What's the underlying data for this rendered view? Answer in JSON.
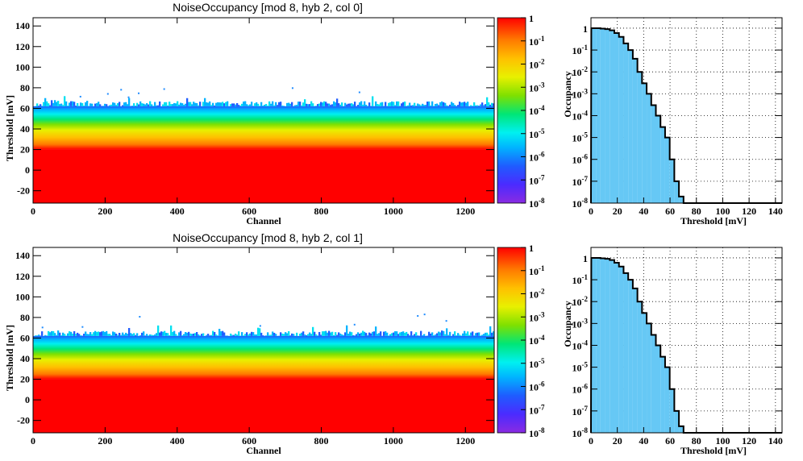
{
  "chart_data": [
    {
      "type": "heatmap",
      "title": "NoiseOccupancy [mod 8, hyb 2, col 0]",
      "xlabel": "Channel",
      "ylabel": "Threshold [mV]",
      "xlim": [
        0,
        1280
      ],
      "ylim": [
        -32,
        148
      ],
      "xticks": [
        "0",
        "200",
        "400",
        "600",
        "800",
        "1000",
        "1200"
      ],
      "yticks": [
        "-20",
        "0",
        "20",
        "40",
        "60",
        "80",
        "100",
        "120",
        "140"
      ],
      "z_scale": "log",
      "zlim": [
        1e-08,
        1
      ],
      "colorbar_labels": [
        {
          "base": "1",
          "exp": ""
        },
        {
          "base": "10",
          "exp": "-1"
        },
        {
          "base": "10",
          "exp": "-2"
        },
        {
          "base": "10",
          "exp": "-3"
        },
        {
          "base": "10",
          "exp": "-4"
        },
        {
          "base": "10",
          "exp": "-5"
        },
        {
          "base": "10",
          "exp": "-6"
        },
        {
          "base": "10",
          "exp": "-7"
        },
        {
          "base": "10",
          "exp": "-8"
        }
      ],
      "edge_threshold_mV": 68,
      "saturation_below_mV": 20
    },
    {
      "type": "bar",
      "title": "",
      "xlabel": "Threshold [mV]",
      "ylabel": "Occupancy",
      "xlim": [
        0,
        145
      ],
      "y_scale": "log",
      "ylim": [
        1e-08,
        3
      ],
      "xticks": [
        "0",
        "20",
        "40",
        "60",
        "80",
        "100",
        "120",
        "140"
      ],
      "yticks": [
        {
          "base": "1",
          "exp": ""
        },
        {
          "base": "10",
          "exp": "-1"
        },
        {
          "base": "10",
          "exp": "-2"
        },
        {
          "base": "10",
          "exp": "-3"
        },
        {
          "base": "10",
          "exp": "-4"
        },
        {
          "base": "10",
          "exp": "-5"
        },
        {
          "base": "10",
          "exp": "-6"
        },
        {
          "base": "10",
          "exp": "-7"
        },
        {
          "base": "10",
          "exp": "-8"
        }
      ],
      "bin_width_mV": 3.5,
      "x": [
        2,
        5.5,
        9,
        12.5,
        16,
        19.5,
        23,
        26.5,
        30,
        33.5,
        37,
        40.5,
        44,
        47.5,
        51,
        54.5,
        58,
        61.5,
        65,
        68.5,
        72
      ],
      "values": [
        1,
        1,
        0.95,
        0.9,
        0.8,
        0.6,
        0.4,
        0.2,
        0.1,
        0.04,
        0.01,
        0.003,
        0.001,
        0.0003,
        0.0001,
        3e-05,
        1e-05,
        1e-06,
        1e-07,
        2e-08,
        1e-08
      ]
    },
    {
      "type": "heatmap",
      "title": "NoiseOccupancy [mod 8, hyb 2, col 1]",
      "xlabel": "Channel",
      "ylabel": "Threshold [mV]",
      "xlim": [
        0,
        1280
      ],
      "ylim": [
        -32,
        148
      ],
      "xticks": [
        "0",
        "200",
        "400",
        "600",
        "800",
        "1000",
        "1200"
      ],
      "yticks": [
        "-20",
        "0",
        "20",
        "40",
        "60",
        "80",
        "100",
        "120",
        "140"
      ],
      "z_scale": "log",
      "zlim": [
        1e-08,
        1
      ],
      "colorbar_labels": [
        {
          "base": "1",
          "exp": ""
        },
        {
          "base": "10",
          "exp": "-1"
        },
        {
          "base": "10",
          "exp": "-2"
        },
        {
          "base": "10",
          "exp": "-3"
        },
        {
          "base": "10",
          "exp": "-4"
        },
        {
          "base": "10",
          "exp": "-5"
        },
        {
          "base": "10",
          "exp": "-6"
        },
        {
          "base": "10",
          "exp": "-7"
        },
        {
          "base": "10",
          "exp": "-8"
        }
      ],
      "edge_threshold_mV": 68,
      "saturation_below_mV": 20
    },
    {
      "type": "bar",
      "title": "",
      "xlabel": "Threshold [mV]",
      "ylabel": "Occupancy",
      "xlim": [
        0,
        145
      ],
      "y_scale": "log",
      "ylim": [
        1e-08,
        3
      ],
      "xticks": [
        "0",
        "20",
        "40",
        "60",
        "80",
        "100",
        "120",
        "140"
      ],
      "yticks": [
        {
          "base": "1",
          "exp": ""
        },
        {
          "base": "10",
          "exp": "-1"
        },
        {
          "base": "10",
          "exp": "-2"
        },
        {
          "base": "10",
          "exp": "-3"
        },
        {
          "base": "10",
          "exp": "-4"
        },
        {
          "base": "10",
          "exp": "-5"
        },
        {
          "base": "10",
          "exp": "-6"
        },
        {
          "base": "10",
          "exp": "-7"
        },
        {
          "base": "10",
          "exp": "-8"
        }
      ],
      "bin_width_mV": 3.5,
      "x": [
        2,
        5.5,
        9,
        12.5,
        16,
        19.5,
        23,
        26.5,
        30,
        33.5,
        37,
        40.5,
        44,
        47.5,
        51,
        54.5,
        58,
        61.5,
        65,
        68.5,
        72
      ],
      "values": [
        1,
        1,
        0.95,
        0.9,
        0.8,
        0.6,
        0.4,
        0.2,
        0.1,
        0.04,
        0.01,
        0.003,
        0.001,
        0.0003,
        0.0001,
        3e-05,
        1e-05,
        1e-06,
        1e-07,
        2e-08,
        1e-08
      ]
    }
  ],
  "colors": {
    "hist_fill": "#66c8f5",
    "hist_line": "#000000",
    "saturated": "#ff0000"
  }
}
